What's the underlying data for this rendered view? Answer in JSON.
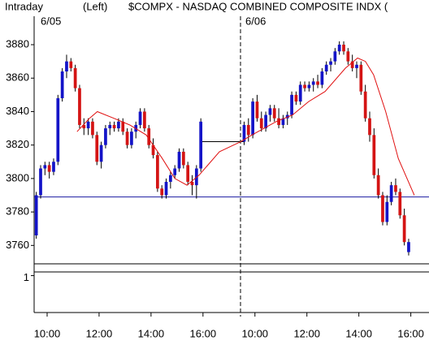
{
  "header": {
    "mode": "Intraday",
    "axis_side": "(Left)",
    "title": "$COMPX - NASDAQ COMBINED COMPOSITE INDX (",
    "dates": [
      "6/05",
      "6/06"
    ]
  },
  "chart_data": {
    "type": "candlestick",
    "x": [
      0.5,
      1.5,
      2.5,
      3.5,
      4.5,
      5.5,
      6.5,
      7.5,
      8.5,
      9.5,
      10.5,
      11.5,
      12.5,
      13.5,
      14.5,
      15.5,
      16.5,
      17.5,
      18.5,
      19.5,
      20.5,
      21.5,
      22.5,
      23.5,
      24.5,
      25.5,
      26.5,
      27.5,
      28.5,
      29.5,
      30.5,
      31.5,
      32.5,
      33.5,
      34.5,
      35.5,
      36.5,
      37.5,
      38.5,
      48.5,
      49.5,
      50.5,
      51.5,
      52.5,
      53.5,
      54.5,
      55.5,
      56.5,
      57.5,
      58.5,
      59.5,
      60.5,
      61.5,
      62.5,
      63.5,
      64.5,
      65.5,
      66.5,
      67.5,
      68.5,
      69.5,
      70.5,
      71.5,
      72.5,
      73.5,
      74.5,
      75.5,
      76.5,
      77.5,
      78.5,
      79.5,
      80.5,
      81.5,
      82.5,
      83.5,
      84.5,
      85.5,
      86.5
    ],
    "open": [
      3766,
      3790,
      3806,
      3808,
      3804,
      3810,
      3848,
      3864,
      3870,
      3866,
      3854,
      3832,
      3830,
      3834,
      3826,
      3810,
      3820,
      3830,
      3832,
      3830,
      3834,
      3828,
      3820,
      3828,
      3832,
      3840,
      3830,
      3820,
      3814,
      3794,
      3790,
      3798,
      3802,
      3806,
      3816,
      3808,
      3798,
      3796,
      3806,
      3822,
      3832,
      3826,
      3846,
      3836,
      3830,
      3838,
      3842,
      3836,
      3832,
      3836,
      3838,
      3850,
      3846,
      3856,
      3854,
      3856,
      3858,
      3856,
      3864,
      3868,
      3870,
      3876,
      3880,
      3876,
      3870,
      3866,
      3868,
      3852,
      3836,
      3826,
      3802,
      3790,
      3774,
      3786,
      3796,
      3792,
      3778,
      3756
    ],
    "high": [
      3792,
      3808,
      3810,
      3810,
      3812,
      3850,
      3866,
      3874,
      3872,
      3868,
      3856,
      3836,
      3836,
      3836,
      3828,
      3822,
      3832,
      3834,
      3834,
      3836,
      3836,
      3830,
      3830,
      3834,
      3842,
      3842,
      3832,
      3824,
      3816,
      3796,
      3800,
      3804,
      3808,
      3818,
      3818,
      3810,
      3802,
      3808,
      3836,
      3834,
      3836,
      3848,
      3850,
      3840,
      3840,
      3844,
      3844,
      3842,
      3838,
      3840,
      3852,
      3852,
      3858,
      3858,
      3858,
      3860,
      3862,
      3866,
      3870,
      3872,
      3878,
      3882,
      3882,
      3878,
      3874,
      3870,
      3870,
      3856,
      3840,
      3830,
      3806,
      3792,
      3790,
      3798,
      3800,
      3794,
      3782,
      3764
    ],
    "low": [
      3764,
      3788,
      3802,
      3800,
      3802,
      3808,
      3846,
      3860,
      3864,
      3852,
      3830,
      3826,
      3826,
      3824,
      3808,
      3806,
      3818,
      3826,
      3828,
      3828,
      3826,
      3818,
      3818,
      3824,
      3830,
      3828,
      3818,
      3812,
      3792,
      3788,
      3788,
      3794,
      3800,
      3804,
      3806,
      3796,
      3790,
      3788,
      3804,
      3820,
      3822,
      3824,
      3834,
      3828,
      3828,
      3834,
      3834,
      3830,
      3830,
      3832,
      3836,
      3844,
      3844,
      3852,
      3852,
      3852,
      3854,
      3854,
      3862,
      3864,
      3868,
      3874,
      3874,
      3868,
      3864,
      3860,
      3850,
      3834,
      3822,
      3800,
      3788,
      3772,
      3772,
      3784,
      3790,
      3776,
      3760,
      3754
    ],
    "close": [
      3790,
      3806,
      3808,
      3804,
      3810,
      3848,
      3864,
      3870,
      3866,
      3854,
      3832,
      3830,
      3834,
      3826,
      3810,
      3820,
      3830,
      3832,
      3830,
      3834,
      3828,
      3820,
      3828,
      3832,
      3840,
      3830,
      3820,
      3814,
      3794,
      3790,
      3798,
      3802,
      3806,
      3816,
      3808,
      3798,
      3796,
      3806,
      3834,
      3832,
      3826,
      3846,
      3836,
      3830,
      3838,
      3842,
      3836,
      3832,
      3836,
      3838,
      3850,
      3846,
      3856,
      3854,
      3856,
      3858,
      3856,
      3864,
      3868,
      3870,
      3876,
      3880,
      3876,
      3870,
      3866,
      3868,
      3852,
      3836,
      3826,
      3802,
      3790,
      3774,
      3786,
      3796,
      3792,
      3778,
      3762,
      3762
    ],
    "up_color": "#1414c8",
    "down_color": "#d41414",
    "moving_average": {
      "color": "#e01010",
      "x": [
        9.9,
        12.8,
        14.6,
        18.4,
        22.1,
        25.9,
        29.6,
        32.5,
        35.3,
        38.1,
        42.8,
        47.7,
        50.3,
        55.9,
        59.7,
        63.4,
        67.2,
        71.9,
        74.7,
        76.5,
        78.4,
        81.2,
        84.1,
        87.8
      ],
      "values": [
        3828,
        3836,
        3840,
        3836,
        3832,
        3826,
        3812,
        3800,
        3796,
        3802,
        3816,
        3822,
        3826,
        3834,
        3838,
        3846,
        3852,
        3866,
        3872,
        3870,
        3862,
        3840,
        3812,
        3790
      ]
    },
    "reference_line": {
      "value": 3789,
      "color": "#1a1aa0"
    },
    "xlim": [
      0,
      91.2
    ],
    "xticks": [
      {
        "value": 3,
        "label": "10:00"
      },
      {
        "value": 15,
        "label": "12:00"
      },
      {
        "value": 27,
        "label": "14:00"
      },
      {
        "value": 39,
        "label": "16:00"
      },
      {
        "value": 51,
        "label": "10:00"
      },
      {
        "value": 63,
        "label": "12:00"
      },
      {
        "value": 75,
        "label": "14:00"
      },
      {
        "value": 87,
        "label": "16:00"
      }
    ],
    "ylim": [
      3749,
      3897
    ],
    "yticks": [
      3760,
      3780,
      3800,
      3820,
      3840,
      3860,
      3880
    ],
    "lower_panel": {
      "ylim": [
        0,
        1.1
      ],
      "yticks": [
        1
      ]
    }
  }
}
